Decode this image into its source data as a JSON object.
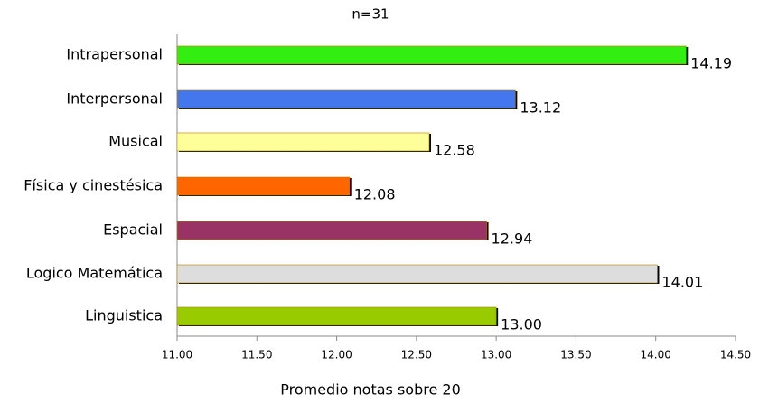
{
  "chart_data": {
    "type": "bar",
    "orientation": "horizontal",
    "title": "n=31",
    "x_label": "Promedio notas sobre 20",
    "categories": [
      "Intrapersonal",
      "Interpersonal",
      "Musical",
      "Física y cinestésica",
      "Espacial",
      "Logico Matemática",
      "Linguistica"
    ],
    "values": [
      14.19,
      13.12,
      12.58,
      12.08,
      12.94,
      14.01,
      13
    ],
    "value_labels": [
      "14.19",
      "13.12",
      "12.58",
      "12.08",
      "12.94",
      "14.01",
      "13.00"
    ],
    "colors": [
      "#33ee11",
      "#4477ee",
      "#ffff99",
      "#ff6600",
      "#993366",
      "#dddddd",
      "#99cc00"
    ],
    "xlim": [
      11,
      14.5
    ],
    "xticks": [
      {
        "value": 11,
        "label": "11.00"
      },
      {
        "value": 11.5,
        "label": "11.50"
      },
      {
        "value": 12,
        "label": "12.00"
      },
      {
        "value": 12.5,
        "label": "12.50"
      },
      {
        "value": 13,
        "label": "13.00"
      },
      {
        "value": 13.5,
        "label": "13.50"
      },
      {
        "value": 14,
        "label": "14.00"
      },
      {
        "value": 14.5,
        "label": "14.50"
      }
    ]
  }
}
